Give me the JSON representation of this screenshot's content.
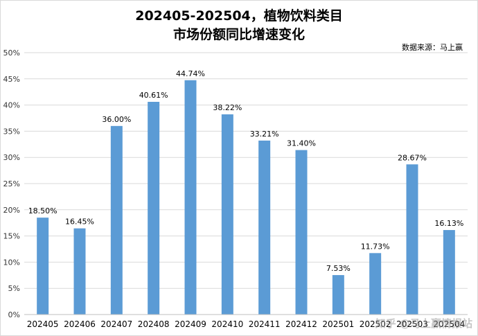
{
  "chart_data": {
    "type": "bar",
    "title": "202405-202504，植物饮料类目",
    "subtitle": "市场份额同比增速变化",
    "source": "数据来源：马上赢",
    "watermark": "知乎 @马上赢情报站",
    "categories": [
      "202405",
      "202406",
      "202407",
      "202408",
      "202409",
      "202410",
      "202411",
      "202412",
      "202501",
      "202502",
      "202503",
      "202504"
    ],
    "category_labels": [
      "202405",
      "202406",
      "202407",
      "202408",
      "202409",
      "202410",
      "202411",
      "202412",
      "202501",
      "202502",
      "202503",
      "202504"
    ],
    "values": [
      18.5,
      16.45,
      36.0,
      40.61,
      44.74,
      38.22,
      33.21,
      31.4,
      7.53,
      11.73,
      28.67,
      16.13
    ],
    "data_labels": [
      "18.50%",
      "16.45%",
      "36.00%",
      "40.61%",
      "44.74%",
      "38.22%",
      "33.21%",
      "31.40%",
      "7.53%",
      "11.73%",
      "28.67%",
      "16.13%"
    ],
    "ylim": [
      0,
      50
    ],
    "yticks": [
      0,
      5,
      10,
      15,
      20,
      25,
      30,
      35,
      40,
      45,
      50
    ],
    "ytick_labels": [
      "0%",
      "5%",
      "10%",
      "15%",
      "20%",
      "25%",
      "30%",
      "35%",
      "40%",
      "45%",
      "50%"
    ],
    "bar_color": "#5b9bd5",
    "grid": true,
    "xlabel": "",
    "ylabel": ""
  }
}
